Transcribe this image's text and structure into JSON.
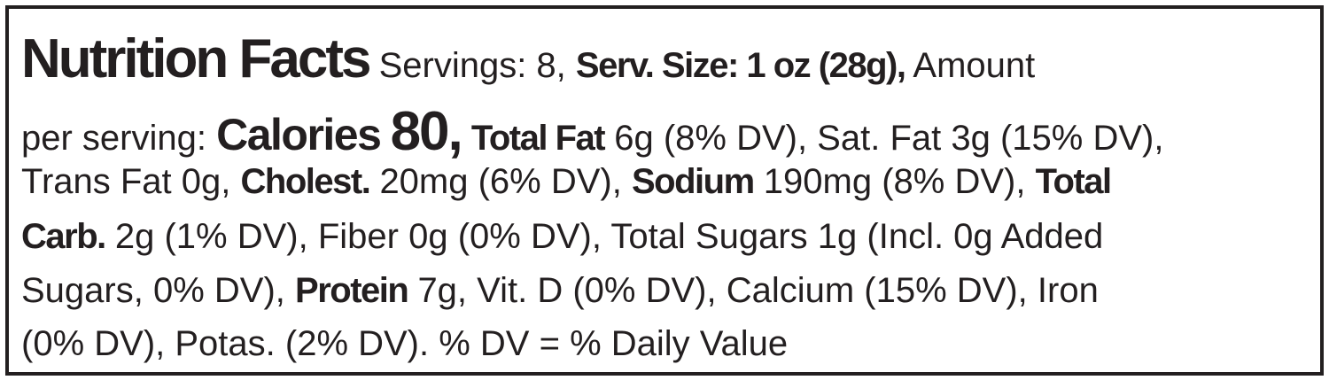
{
  "lines": [
    [
      "Nutrition Facts",
      "Servings: 8,",
      "Serv. Size: 1 oz (28g),",
      "Amount"
    ],
    [
      "per serving:",
      "Calories",
      "80,",
      "Total Fat",
      "6g (8% DV), Sat. Fat 3g (15% DV),"
    ],
    [
      "Trans Fat 0g,",
      "Cholest.",
      "20mg (6% DV),",
      "Sodium",
      "190mg (8% DV),",
      "Total"
    ],
    [
      "Carb.",
      "2g (1% DV), Fiber 0g (0% DV), Total Sugars 1g (Incl. 0g Added"
    ],
    [
      "Sugars, 0% DV),",
      "Protein",
      "7g, Vit. D (0% DV), Calcium (15% DV), Iron"
    ],
    [
      "(0% DV), Potas. (2% DV). % DV = % Daily Value"
    ]
  ]
}
